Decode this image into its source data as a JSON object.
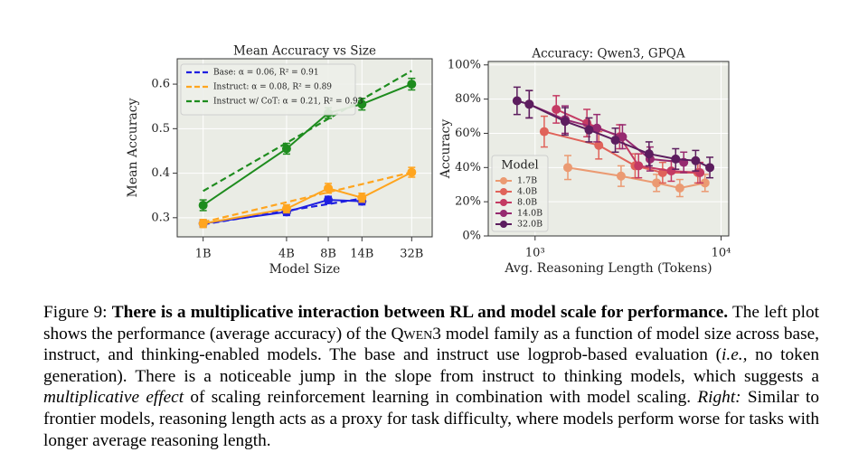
{
  "chart_data": [
    {
      "type": "line",
      "title": "Mean Accuracy vs Size",
      "xlabel": "Model Size",
      "ylabel": "Mean Accuracy",
      "xscale": "log",
      "x": [
        1,
        4,
        8,
        14,
        32
      ],
      "xlim": [
        0.65,
        45
      ],
      "xticks": [
        {
          "value": 1,
          "label": "1B"
        },
        {
          "value": 4,
          "label": "4B"
        },
        {
          "value": 8,
          "label": "8B"
        },
        {
          "value": 14,
          "label": "14B"
        },
        {
          "value": 32,
          "label": "32B"
        }
      ],
      "ylim": [
        0.257,
        0.657
      ],
      "yticks": [
        0.3,
        0.4,
        0.5,
        0.6
      ],
      "grid": true,
      "legend": "upper left",
      "series": [
        {
          "name": "Base: α = 0.06, R² = 0.91",
          "color": "#1f1fe0",
          "values": [
            0.287,
            0.313,
            0.34,
            0.337,
            null
          ],
          "errors": [
            0.008,
            0.008,
            0.008,
            0.008,
            null
          ],
          "fit": [
            0.285,
            0.343
          ]
        },
        {
          "name": "Instruct: α = 0.08, R² = 0.89",
          "color": "#ffa51f",
          "values": [
            0.287,
            0.32,
            0.366,
            0.345,
            0.402
          ],
          "errors": [
            0.009,
            0.009,
            0.011,
            0.01,
            0.011
          ],
          "fit": [
            0.29,
            0.402
          ]
        },
        {
          "name": "Instruct w/ CoT: α = 0.21, R² = 0.93",
          "color": "#1e8c1e",
          "values": [
            0.328,
            0.455,
            0.535,
            0.555,
            0.6
          ],
          "errors": [
            0.012,
            0.012,
            0.012,
            0.013,
            0.013
          ],
          "fit": [
            0.36,
            0.63
          ]
        }
      ]
    },
    {
      "type": "line",
      "title": "Accuracy: Qwen3, GPQA",
      "xlabel": "Avg. Reasoning Length (Tokens)",
      "ylabel": "Accuracy",
      "xscale": "log",
      "xlim": [
        560,
        11000
      ],
      "xticks": [
        {
          "value": 1000,
          "label": "10³"
        },
        {
          "value": 10000,
          "label": "10⁴"
        }
      ],
      "ylim": [
        0,
        102
      ],
      "yticks": [
        {
          "value": 0,
          "label": "0%"
        },
        {
          "value": 20,
          "label": "20%"
        },
        {
          "value": 40,
          "label": "40%"
        },
        {
          "value": 60,
          "label": "60%"
        },
        {
          "value": 80,
          "label": "80%"
        },
        {
          "value": 100,
          "label": "100%"
        }
      ],
      "grid": true,
      "legend": "lower left",
      "legend_title": "Model",
      "series": [
        {
          "name": "1.7B",
          "color": "#eb9a72",
          "x": [
            1500,
            2900,
            4500,
            6000,
            8200
          ],
          "values": [
            40,
            35,
            31,
            28,
            31
          ],
          "errors": [
            7,
            6,
            5,
            5,
            5
          ]
        },
        {
          "name": "4.0B",
          "color": "#e0635a",
          "x": [
            1120,
            2200,
            3450,
            4850,
            7500
          ],
          "values": [
            61,
            53,
            41,
            37,
            37
          ],
          "errors": [
            9,
            8,
            7,
            6,
            6
          ]
        },
        {
          "name": "8.0B",
          "color": "#c43a63",
          "x": [
            1300,
            1900,
            2850,
            3600,
            5400,
            7700
          ],
          "values": [
            74,
            66,
            58,
            41,
            38,
            37
          ],
          "errors": [
            8,
            8,
            7,
            7,
            6,
            6
          ]
        },
        {
          "name": "14.0B",
          "color": "#962a70",
          "x": [
            930,
            1450,
            2150,
            2950,
            4150,
            6300
          ],
          "values": [
            77,
            68,
            63,
            58,
            45,
            43
          ],
          "errors": [
            8,
            8,
            8,
            7,
            7,
            6
          ]
        },
        {
          "name": "32.0B",
          "color": "#5c1d5e",
          "x": [
            800,
            930,
            1450,
            1950,
            2700,
            4100,
            5700,
            7300,
            8700
          ],
          "values": [
            79,
            77,
            67,
            62,
            56,
            48,
            45,
            44,
            40
          ],
          "errors": [
            8,
            8,
            8,
            7,
            7,
            7,
            6,
            6,
            6
          ]
        }
      ]
    }
  ],
  "caption": {
    "segments": [
      {
        "text": "Figure 9: ",
        "style": "normal"
      },
      {
        "text": "There is a multiplicative interaction between RL and model scale for performance.",
        "style": "bold"
      },
      {
        "text": " The left plot shows the performance (average accuracy) of the ",
        "style": "normal"
      },
      {
        "text": "Qwen3",
        "style": "smallcaps"
      },
      {
        "text": " model family as a function of model size across base, instruct, and thinking-enabled models. The base and instruct use logprob-based evaluation (",
        "style": "normal"
      },
      {
        "text": "i.e.,",
        "style": "italic"
      },
      {
        "text": " no token generation). There is a noticeable jump in the slope from instruct to thinking models, which suggests a ",
        "style": "normal"
      },
      {
        "text": "multiplicative effect",
        "style": "italic"
      },
      {
        "text": " of scaling reinforcement learning in combination with model scaling. ",
        "style": "normal"
      },
      {
        "text": "Right:",
        "style": "italic"
      },
      {
        "text": " Similar to frontier models, reasoning length acts as a proxy for task difficulty, where models perform worse for tasks with longer average reasoning length.",
        "style": "normal"
      }
    ]
  }
}
